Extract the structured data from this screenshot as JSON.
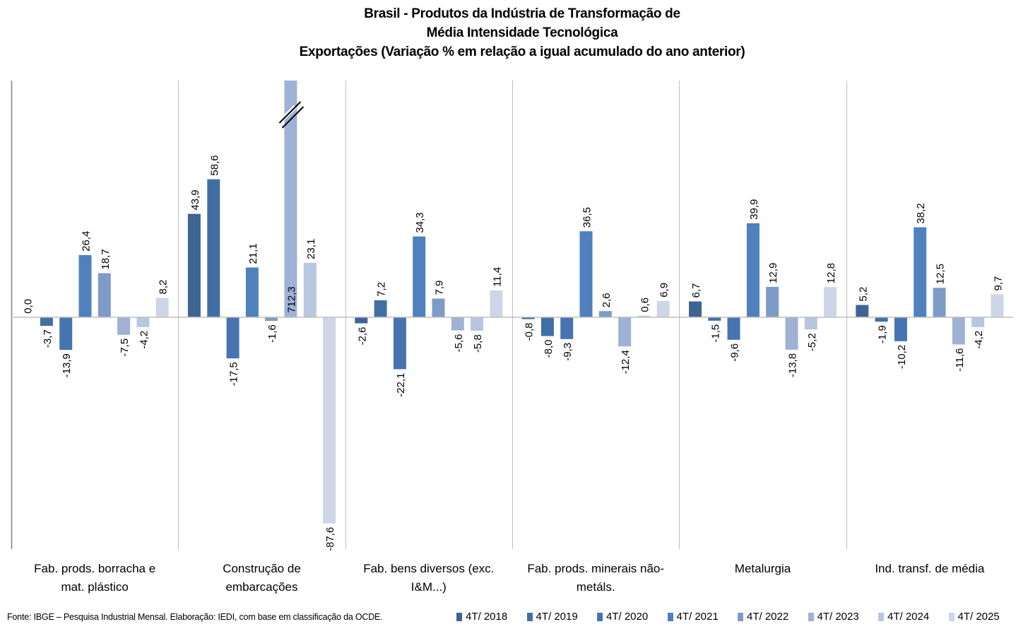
{
  "chart_data": {
    "type": "bar",
    "title": [
      "Brasil - Produtos da Indústria de Transformação de",
      "Média Intensidade Tecnológica",
      "Exportações (Variação % em relação a igual acumulado do ano anterior)"
    ],
    "xlabel": "",
    "ylabel": "",
    "ylim": [
      -98.5,
      100.5
    ],
    "grid": false,
    "legend_position": "bottom-right",
    "categories": [
      "Fab. prods. borracha e mat. plástico",
      "Construção de embarcações",
      "Fab. bens diversos (exc. I&M...)",
      "Fab. prods. minerais não-metáls.",
      "Metalurgia",
      "Ind. transf. de média"
    ],
    "category_lines": [
      [
        "Fab. prods. borracha e",
        "mat. plástico"
      ],
      [
        "Construção de",
        "embarcações"
      ],
      [
        "Fab. bens diversos (exc.",
        "I&M...)"
      ],
      [
        "Fab. prods. minerais não-",
        "metáls."
      ],
      [
        "Metalurgia",
        ""
      ],
      [
        "Ind. transf. de média",
        ""
      ]
    ],
    "series": [
      {
        "name": "4T/ 2018",
        "color": "#3E6494",
        "values": [
          0.0,
          43.9,
          -2.6,
          -0.8,
          6.7,
          5.2
        ],
        "labels": [
          "0,0",
          "43,9",
          "-2,6",
          "-0,8",
          "6,7",
          "5,2"
        ]
      },
      {
        "name": "4T/ 2019",
        "color": "#426FA3",
        "values": [
          -3.7,
          58.6,
          7.2,
          -8.0,
          -1.5,
          -1.9
        ],
        "labels": [
          "-3,7",
          "58,6",
          "7,2",
          "-8,0",
          "-1,5",
          "-1,9"
        ]
      },
      {
        "name": "4T/ 2020",
        "color": "#4774B0",
        "values": [
          -13.9,
          -17.5,
          -22.1,
          -9.3,
          -9.6,
          -10.2
        ],
        "labels": [
          "-13,9",
          "-17,5",
          "-22,1",
          "-9,3",
          "-9,6",
          "-10,2"
        ]
      },
      {
        "name": "4T/ 2021",
        "color": "#4F81BD",
        "values": [
          26.4,
          21.1,
          34.3,
          36.5,
          39.9,
          38.2
        ],
        "labels": [
          "26,4",
          "21,1",
          "34,3",
          "36,5",
          "39,9",
          "38,2"
        ]
      },
      {
        "name": "4T/ 2022",
        "color": "#7E9BC8",
        "values": [
          18.7,
          -1.6,
          7.9,
          2.6,
          12.9,
          12.5
        ],
        "labels": [
          "18,7",
          "-1,6",
          "7,9",
          "2,6",
          "12,9",
          "12,5"
        ]
      },
      {
        "name": "4T/ 2023",
        "color": "#9FB2D5",
        "values": [
          -7.5,
          712.3,
          -5.6,
          -12.4,
          -13.8,
          -11.6
        ],
        "labels": [
          "-7,5",
          "712,3",
          "-5,6",
          "-12,4",
          "-13,8",
          "-11,6"
        ]
      },
      {
        "name": "4T/ 2024",
        "color": "#B8C6E0",
        "values": [
          -4.2,
          23.1,
          -5.8,
          0.6,
          -5.2,
          -4.2
        ],
        "labels": [
          "-4,2",
          "23,1",
          "-5,8",
          "0,6",
          "-5,2",
          "-4,2"
        ]
      },
      {
        "name": "4T/ 2025",
        "color": "#CDD6E6",
        "values": [
          8.2,
          -87.6,
          11.4,
          6.9,
          12.8,
          9.7
        ],
        "labels": [
          "8,2",
          "-87,6",
          "11,4",
          "6,9",
          "12,8",
          "9,7"
        ]
      }
    ],
    "annotations": [
      {
        "type": "axis-break",
        "category": "Construção de embarcações",
        "series": "4T/ 2023",
        "note": "bar truncated; value label shown inside bar"
      }
    ]
  },
  "source": "Fonte: IBGE – Pesquisa Industrial Mensal. Elaboração: IEDI, com base em classificação da OCDE."
}
